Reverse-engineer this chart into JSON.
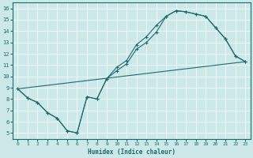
{
  "xlabel": "Humidex (Indice chaleur)",
  "bg_color": "#cce8e8",
  "line_color": "#1a6b6b",
  "xlim": [
    -0.5,
    23.5
  ],
  "ylim": [
    4.5,
    16.5
  ],
  "xticks": [
    0,
    1,
    2,
    3,
    4,
    5,
    6,
    7,
    8,
    9,
    10,
    11,
    12,
    13,
    14,
    15,
    16,
    17,
    18,
    19,
    20,
    21,
    22,
    23
  ],
  "yticks": [
    5,
    6,
    7,
    8,
    9,
    10,
    11,
    12,
    13,
    14,
    15,
    16
  ],
  "line1": {
    "x": [
      0,
      1,
      2,
      3,
      4,
      5,
      6,
      7,
      8,
      9,
      10,
      11,
      12,
      13,
      14,
      15,
      16,
      17,
      18,
      19,
      20,
      21,
      22,
      23
    ],
    "y": [
      8.9,
      8.1,
      7.7,
      6.8,
      6.3,
      5.2,
      5.0,
      8.2,
      8.0,
      9.8,
      10.5,
      11.1,
      12.4,
      13.0,
      13.9,
      15.3,
      15.8,
      15.7,
      15.5,
      15.3,
      14.3,
      13.3,
      11.8,
      11.3
    ]
  },
  "line2": {
    "x": [
      0,
      1,
      2,
      3,
      4,
      5,
      6,
      7,
      8,
      9,
      10,
      11,
      12,
      13,
      14,
      15,
      16,
      17,
      18,
      19,
      20,
      21,
      22,
      23
    ],
    "y": [
      8.9,
      8.1,
      7.7,
      6.8,
      6.3,
      5.2,
      5.0,
      8.2,
      8.0,
      9.8,
      10.8,
      11.4,
      12.8,
      13.5,
      14.5,
      15.3,
      15.8,
      15.7,
      15.5,
      15.3,
      14.3,
      13.3,
      11.8,
      11.3
    ]
  },
  "line3": {
    "x": [
      0,
      23
    ],
    "y": [
      8.9,
      11.3
    ]
  }
}
